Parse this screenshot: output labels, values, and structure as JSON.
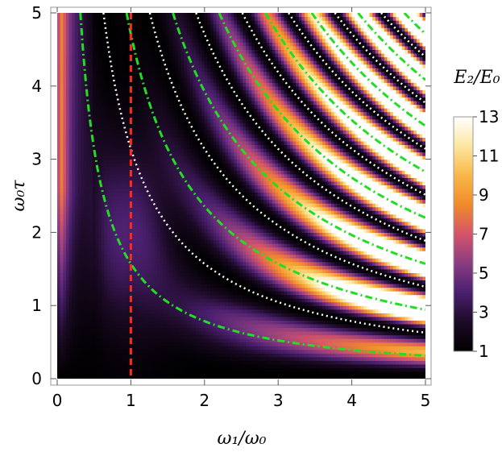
{
  "chart_data": {
    "type": "heatmap",
    "title": "",
    "xlabel": "ω₁/ω₀",
    "ylabel": "ω₀τ",
    "xlim": [
      0,
      5
    ],
    "ylim": [
      0,
      5
    ],
    "x_ticks": [
      "0",
      "1",
      "2",
      "3",
      "4",
      "5"
    ],
    "y_ticks": [
      "0",
      "1",
      "2",
      "3",
      "4",
      "5"
    ],
    "grid": false,
    "value_description": "E2/E0 ratio shown as color",
    "colorbar": {
      "title": "E₂/E₀",
      "range": [
        1,
        13
      ],
      "ticks": [
        "1",
        "3",
        "5",
        "7",
        "9",
        "11",
        "13"
      ],
      "colormap": [
        "#000000",
        "#1c0a26",
        "#4a1f6e",
        "#8a3c82",
        "#d4546a",
        "#f08a2a",
        "#f8b848",
        "#fde6a0",
        "#ffffff"
      ]
    },
    "overlays": [
      {
        "style": "dashed",
        "color": "#ff2a1a",
        "x": 1
      },
      {
        "style": "dash-dot",
        "color": "#22dd22",
        "curves": "x·y = (2n−1)·π/2, n = 1..9"
      },
      {
        "style": "dotted",
        "color": "#ffffff",
        "curves": "x·y = n·π, n = 1..8"
      }
    ]
  }
}
